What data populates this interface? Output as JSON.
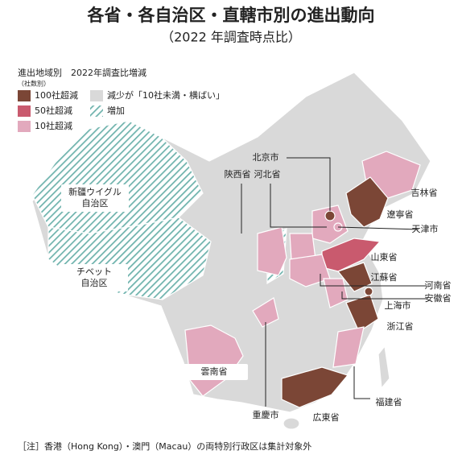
{
  "header": {
    "title": "各省・各自治区・直轄市別の進出動向",
    "subtitle": "（2022 年調査時点比）"
  },
  "legend": {
    "title": "進出地域別　2022年調査比増減",
    "unit": "（社数別）",
    "items": [
      {
        "label": "100社超減",
        "color": "#7b4636"
      },
      {
        "label": "50社超減",
        "color": "#c95a6e"
      },
      {
        "label": "10社超減",
        "color": "#e2a9bd"
      },
      {
        "label": "減少が「10社未満・横ばい」",
        "color": "#d9d9d9"
      },
      {
        "label": "増加",
        "color": "#6fb3ad",
        "hatched": true
      }
    ]
  },
  "labels": [
    {
      "lines": [
        "新疆ウイグル",
        "自治区"
      ]
    },
    {
      "lines": [
        "チベット",
        "自治区"
      ]
    },
    {
      "lines": [
        "雲南省"
      ]
    },
    {
      "lines": [
        "重慶市"
      ]
    },
    {
      "lines": [
        "陝西省"
      ]
    },
    {
      "lines": [
        "河北省"
      ]
    },
    {
      "lines": [
        "北京市"
      ]
    },
    {
      "lines": [
        "吉林省"
      ]
    },
    {
      "lines": [
        "遼寧省"
      ]
    },
    {
      "lines": [
        "天津市"
      ]
    },
    {
      "lines": [
        "山東省"
      ]
    },
    {
      "lines": [
        "江蘇省"
      ]
    },
    {
      "lines": [
        "河南省"
      ]
    },
    {
      "lines": [
        "安徽省"
      ]
    },
    {
      "lines": [
        "上海市"
      ]
    },
    {
      "lines": [
        "浙江省"
      ]
    },
    {
      "lines": [
        "福建省"
      ]
    },
    {
      "lines": [
        "広東省"
      ]
    }
  ],
  "note": "［注］香港（Hong Kong）・澳門（Macau）の両特別行政区は集計対象外"
}
